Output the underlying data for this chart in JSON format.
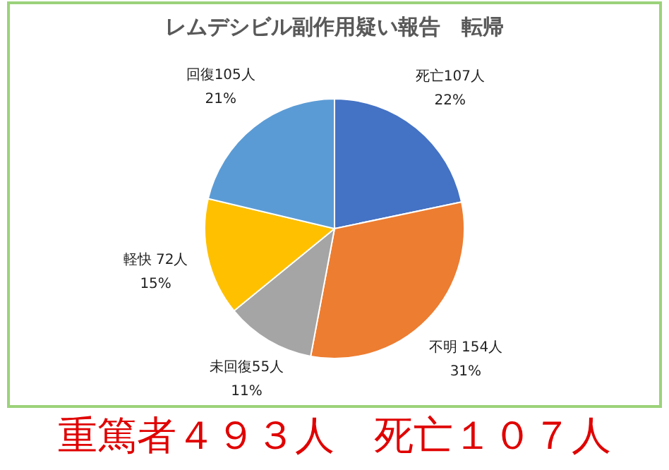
{
  "chart_data": {
    "type": "pie",
    "title": "レムデシビル副作用疑い報告　転帰",
    "categories": [
      "死亡",
      "不明",
      "未回復",
      "軽快",
      "回復"
    ],
    "values": [
      107,
      154,
      55,
      72,
      105
    ],
    "colors": [
      "#4472c4",
      "#ed7d31",
      "#a5a5a5",
      "#ffc000",
      "#5b9bd5"
    ],
    "value_labels": [
      "107人\n22%",
      " 154人\n31%",
      "55人\n11%",
      " 72人\n15%",
      "105人\n21%"
    ],
    "annotations": [
      "重篤者４９３人　死亡１０７人"
    ]
  }
}
